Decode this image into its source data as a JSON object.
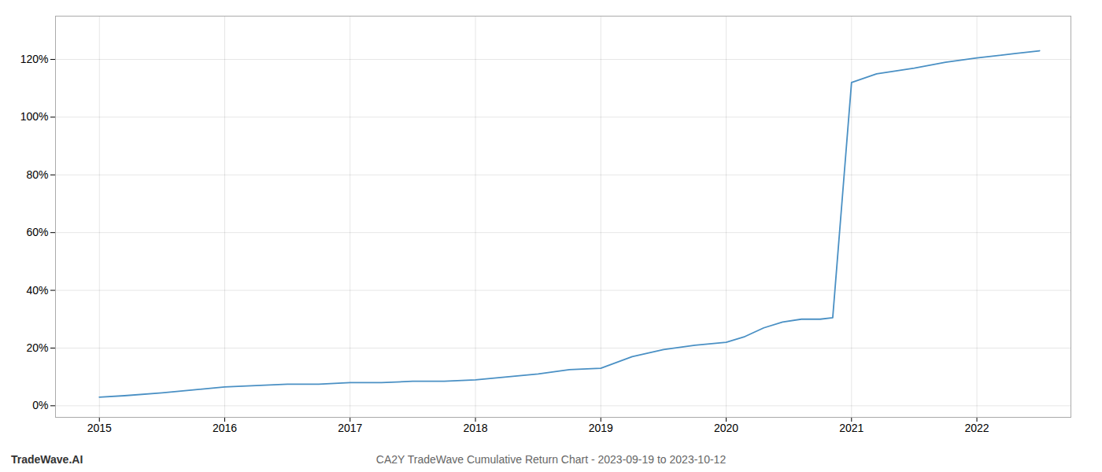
{
  "chart_data": {
    "type": "line",
    "title": "CA2Y TradeWave Cumulative Return Chart - 2023-09-19 to 2023-10-12",
    "annotations": [
      "TradeWave.AI"
    ],
    "color": "#4a90c4",
    "x": [
      2015.0,
      2015.2,
      2015.5,
      2015.75,
      2016.0,
      2016.25,
      2016.5,
      2016.75,
      2017.0,
      2017.25,
      2017.5,
      2017.75,
      2018.0,
      2018.25,
      2018.5,
      2018.75,
      2019.0,
      2019.25,
      2019.5,
      2019.75,
      2020.0,
      2020.15,
      2020.3,
      2020.45,
      2020.6,
      2020.75,
      2020.85,
      2021.0,
      2021.2,
      2021.5,
      2021.75,
      2022.0,
      2022.3,
      2022.5
    ],
    "values": [
      3.0,
      3.5,
      4.5,
      5.5,
      6.5,
      7.0,
      7.5,
      7.5,
      8.0,
      8.0,
      8.5,
      8.5,
      9.0,
      10.0,
      11.0,
      12.5,
      13.0,
      17.0,
      19.5,
      21.0,
      22.0,
      24.0,
      27.0,
      29.0,
      30.0,
      30.0,
      30.5,
      112.0,
      115.0,
      117.0,
      119.0,
      120.5,
      122.0,
      123.0
    ],
    "xlim": [
      2014.65,
      2022.75
    ],
    "ylim": [
      -4,
      135
    ],
    "xticks": [
      2015,
      2016,
      2017,
      2018,
      2019,
      2020,
      2021,
      2022
    ],
    "yticks": [
      {
        "value": 0,
        "label": "0%"
      },
      {
        "value": 20,
        "label": "20%"
      },
      {
        "value": 40,
        "label": "40%"
      },
      {
        "value": 60,
        "label": "60%"
      },
      {
        "value": 80,
        "label": "80%"
      },
      {
        "value": 100,
        "label": "100%"
      },
      {
        "value": 120,
        "label": "120%"
      }
    ],
    "grid": true
  }
}
